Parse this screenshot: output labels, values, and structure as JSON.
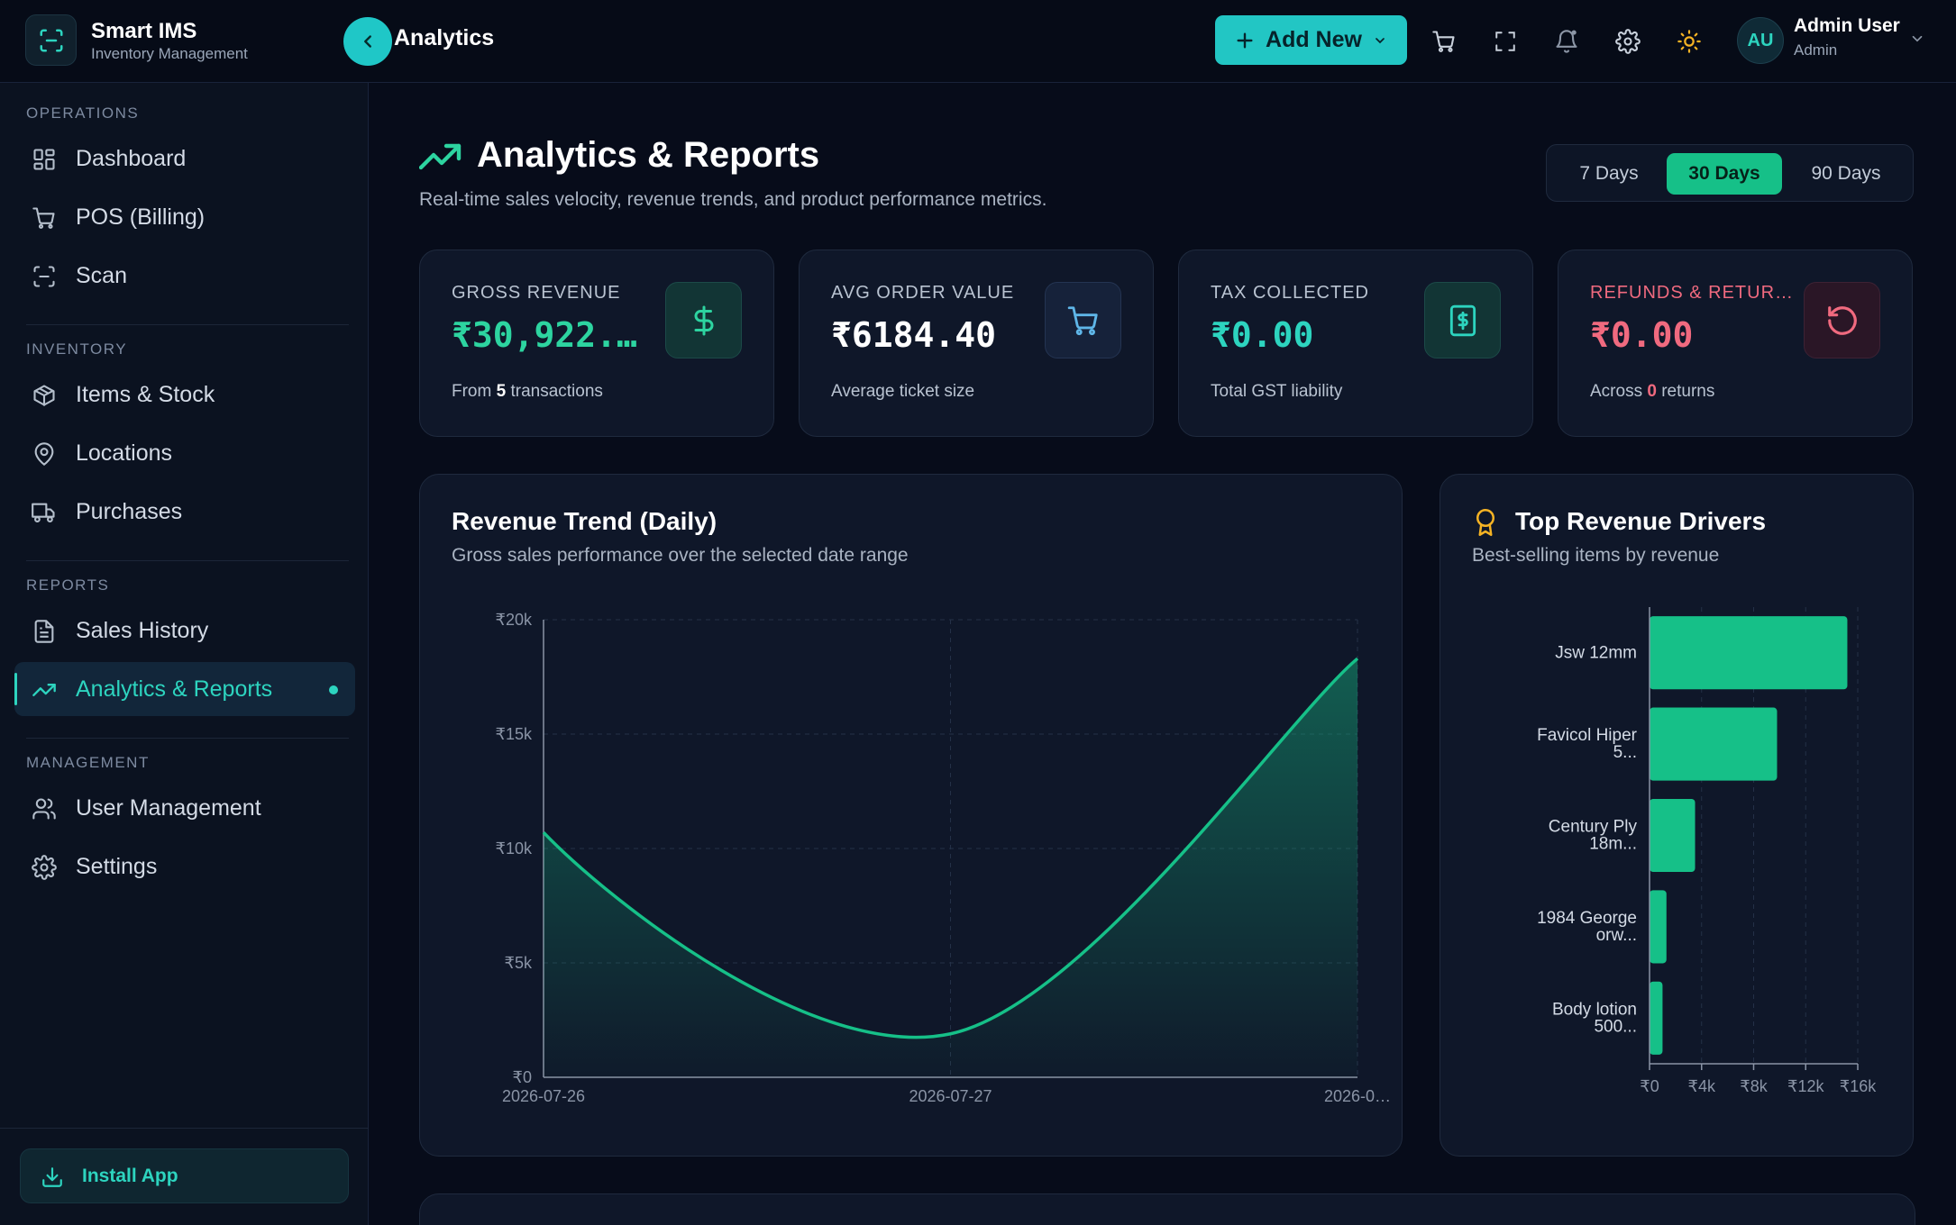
{
  "app": {
    "name": "Smart IMS",
    "subtitle": "Inventory Management",
    "breadcrumb": "Analytics"
  },
  "topbar": {
    "add_new_label": "Add New",
    "icons": [
      "cart-icon",
      "fullscreen-icon",
      "bell-icon",
      "gear-icon",
      "sun-icon"
    ],
    "user": {
      "initials": "AU",
      "name": "Admin User",
      "role": "Admin"
    }
  },
  "sidebar": {
    "sections": [
      {
        "label": "OPERATIONS",
        "items": [
          {
            "label": "Dashboard",
            "icon": "grid-icon"
          },
          {
            "label": "POS (Billing)",
            "icon": "cart-icon"
          },
          {
            "label": "Scan",
            "icon": "scan-icon"
          }
        ]
      },
      {
        "label": "INVENTORY",
        "items": [
          {
            "label": "Items & Stock",
            "icon": "box-icon"
          },
          {
            "label": "Locations",
            "icon": "map-pin-icon"
          },
          {
            "label": "Purchases",
            "icon": "truck-icon"
          }
        ]
      },
      {
        "label": "REPORTS",
        "items": [
          {
            "label": "Sales History",
            "icon": "file-icon"
          },
          {
            "label": "Analytics & Reports",
            "icon": "trend-icon",
            "active": true
          }
        ]
      },
      {
        "label": "MANAGEMENT",
        "items": [
          {
            "label": "User Management",
            "icon": "users-icon"
          },
          {
            "label": "Settings",
            "icon": "gear-icon"
          }
        ]
      }
    ],
    "install_label": "Install App"
  },
  "page": {
    "title": "Analytics & Reports",
    "subtitle": "Real-time sales velocity, revenue trends, and product performance metrics.",
    "ranges": [
      {
        "label": "7 Days",
        "active": false
      },
      {
        "label": "30 Days",
        "active": true
      },
      {
        "label": "90 Days",
        "active": false
      }
    ]
  },
  "kpis": [
    {
      "label": "GROSS REVENUE",
      "value": "₹30,922.…",
      "foot_pre": "From ",
      "foot_num": "5",
      "foot_post": " transactions",
      "color": "#2dd4a0",
      "icon": "dollar-icon"
    },
    {
      "label": "AVG ORDER VALUE",
      "value": "₹6184.40",
      "foot_pre": "Average ticket size",
      "foot_num": "",
      "foot_post": "",
      "color": "#ffffff",
      "icon": "cart-icon"
    },
    {
      "label": "TAX COLLECTED",
      "value": "₹0.00",
      "foot_pre": "Total GST liability",
      "foot_num": "",
      "foot_post": "",
      "color": "#2dd4bf",
      "icon": "receipt-icon"
    },
    {
      "label": "REFUNDS & RETUR…",
      "value": "₹0.00",
      "foot_pre": "Across ",
      "foot_num": "0",
      "foot_post": " returns",
      "color": "#f06a7f",
      "icon": "undo-icon"
    }
  ],
  "revenue_panel": {
    "title": "Revenue Trend (Daily)",
    "subtitle": "Gross sales performance over the selected date range"
  },
  "drivers_panel": {
    "title": "Top Revenue Drivers",
    "subtitle": "Best-selling items by revenue"
  },
  "chart_data": [
    {
      "type": "area",
      "title": "Revenue Trend (Daily)",
      "x": [
        "2026-07-26",
        "2026-07-27",
        "2026-0…"
      ],
      "series": [
        {
          "values": [
            10700,
            1900,
            18300
          ]
        }
      ],
      "y_ticks": [
        "₹0",
        "₹5k",
        "₹10k",
        "₹15k",
        "₹20k"
      ],
      "ylim": [
        0,
        20000
      ],
      "grid": true,
      "color": "#16c088"
    },
    {
      "type": "bar",
      "orientation": "horizontal",
      "title": "Top Revenue Drivers",
      "categories": [
        [
          "Jsw 12mm"
        ],
        [
          "Favicol Hiper",
          "5..."
        ],
        [
          "Century Ply",
          "18m..."
        ],
        [
          "1984 George",
          "orw..."
        ],
        [
          "Body lotion",
          "500..."
        ]
      ],
      "values": [
        15200,
        9800,
        3500,
        1300,
        1000
      ],
      "x_ticks": [
        "₹0",
        "₹4k",
        "₹8k",
        "₹12k",
        "₹16k"
      ],
      "xlim": [
        0,
        16000
      ],
      "grid": true,
      "color": "#16c088"
    }
  ]
}
